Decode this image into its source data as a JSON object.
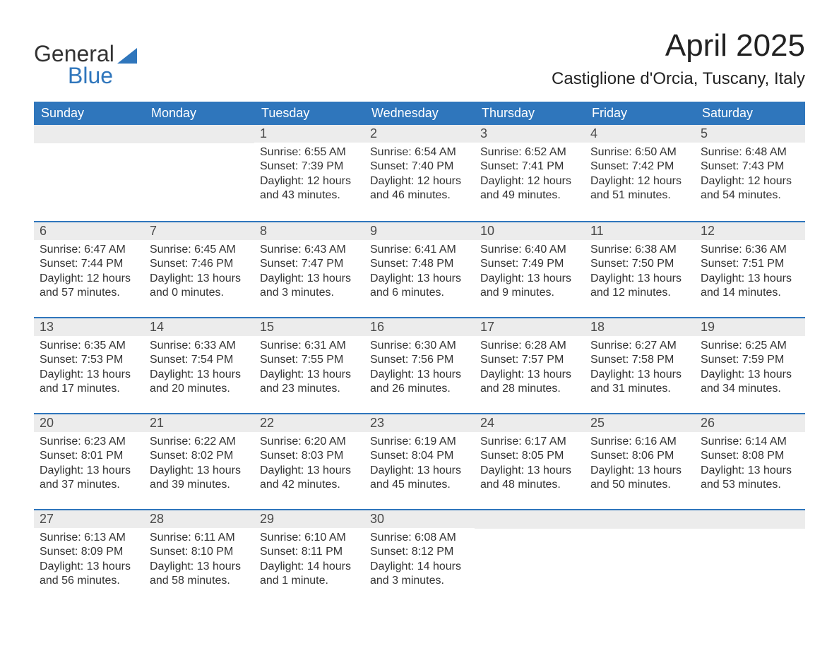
{
  "logo": {
    "word1": "General",
    "word2": "Blue"
  },
  "title": "April 2025",
  "location": "Castiglione d'Orcia, Tuscany, Italy",
  "header_bg": "#2f76bc",
  "header_text": "#ffffff",
  "daynum_bg": "#ececec",
  "row_border": "#2f76bc",
  "day_names": [
    "Sunday",
    "Monday",
    "Tuesday",
    "Wednesday",
    "Thursday",
    "Friday",
    "Saturday"
  ],
  "weeks": [
    [
      {
        "blank": true
      },
      {
        "blank": true
      },
      {
        "n": "1",
        "sunrise": "6:55 AM",
        "sunset": "7:39 PM",
        "daylight": "12 hours and 43 minutes."
      },
      {
        "n": "2",
        "sunrise": "6:54 AM",
        "sunset": "7:40 PM",
        "daylight": "12 hours and 46 minutes."
      },
      {
        "n": "3",
        "sunrise": "6:52 AM",
        "sunset": "7:41 PM",
        "daylight": "12 hours and 49 minutes."
      },
      {
        "n": "4",
        "sunrise": "6:50 AM",
        "sunset": "7:42 PM",
        "daylight": "12 hours and 51 minutes."
      },
      {
        "n": "5",
        "sunrise": "6:48 AM",
        "sunset": "7:43 PM",
        "daylight": "12 hours and 54 minutes."
      }
    ],
    [
      {
        "n": "6",
        "sunrise": "6:47 AM",
        "sunset": "7:44 PM",
        "daylight": "12 hours and 57 minutes."
      },
      {
        "n": "7",
        "sunrise": "6:45 AM",
        "sunset": "7:46 PM",
        "daylight": "13 hours and 0 minutes."
      },
      {
        "n": "8",
        "sunrise": "6:43 AM",
        "sunset": "7:47 PM",
        "daylight": "13 hours and 3 minutes."
      },
      {
        "n": "9",
        "sunrise": "6:41 AM",
        "sunset": "7:48 PM",
        "daylight": "13 hours and 6 minutes."
      },
      {
        "n": "10",
        "sunrise": "6:40 AM",
        "sunset": "7:49 PM",
        "daylight": "13 hours and 9 minutes."
      },
      {
        "n": "11",
        "sunrise": "6:38 AM",
        "sunset": "7:50 PM",
        "daylight": "13 hours and 12 minutes."
      },
      {
        "n": "12",
        "sunrise": "6:36 AM",
        "sunset": "7:51 PM",
        "daylight": "13 hours and 14 minutes."
      }
    ],
    [
      {
        "n": "13",
        "sunrise": "6:35 AM",
        "sunset": "7:53 PM",
        "daylight": "13 hours and 17 minutes."
      },
      {
        "n": "14",
        "sunrise": "6:33 AM",
        "sunset": "7:54 PM",
        "daylight": "13 hours and 20 minutes."
      },
      {
        "n": "15",
        "sunrise": "6:31 AM",
        "sunset": "7:55 PM",
        "daylight": "13 hours and 23 minutes."
      },
      {
        "n": "16",
        "sunrise": "6:30 AM",
        "sunset": "7:56 PM",
        "daylight": "13 hours and 26 minutes."
      },
      {
        "n": "17",
        "sunrise": "6:28 AM",
        "sunset": "7:57 PM",
        "daylight": "13 hours and 28 minutes."
      },
      {
        "n": "18",
        "sunrise": "6:27 AM",
        "sunset": "7:58 PM",
        "daylight": "13 hours and 31 minutes."
      },
      {
        "n": "19",
        "sunrise": "6:25 AM",
        "sunset": "7:59 PM",
        "daylight": "13 hours and 34 minutes."
      }
    ],
    [
      {
        "n": "20",
        "sunrise": "6:23 AM",
        "sunset": "8:01 PM",
        "daylight": "13 hours and 37 minutes."
      },
      {
        "n": "21",
        "sunrise": "6:22 AM",
        "sunset": "8:02 PM",
        "daylight": "13 hours and 39 minutes."
      },
      {
        "n": "22",
        "sunrise": "6:20 AM",
        "sunset": "8:03 PM",
        "daylight": "13 hours and 42 minutes."
      },
      {
        "n": "23",
        "sunrise": "6:19 AM",
        "sunset": "8:04 PM",
        "daylight": "13 hours and 45 minutes."
      },
      {
        "n": "24",
        "sunrise": "6:17 AM",
        "sunset": "8:05 PM",
        "daylight": "13 hours and 48 minutes."
      },
      {
        "n": "25",
        "sunrise": "6:16 AM",
        "sunset": "8:06 PM",
        "daylight": "13 hours and 50 minutes."
      },
      {
        "n": "26",
        "sunrise": "6:14 AM",
        "sunset": "8:08 PM",
        "daylight": "13 hours and 53 minutes."
      }
    ],
    [
      {
        "n": "27",
        "sunrise": "6:13 AM",
        "sunset": "8:09 PM",
        "daylight": "13 hours and 56 minutes."
      },
      {
        "n": "28",
        "sunrise": "6:11 AM",
        "sunset": "8:10 PM",
        "daylight": "13 hours and 58 minutes."
      },
      {
        "n": "29",
        "sunrise": "6:10 AM",
        "sunset": "8:11 PM",
        "daylight": "14 hours and 1 minute."
      },
      {
        "n": "30",
        "sunrise": "6:08 AM",
        "sunset": "8:12 PM",
        "daylight": "14 hours and 3 minutes."
      },
      {
        "blank": true
      },
      {
        "blank": true
      },
      {
        "blank": true
      }
    ]
  ],
  "labels": {
    "sunrise": "Sunrise:",
    "sunset": "Sunset:",
    "daylight": "Daylight:"
  }
}
